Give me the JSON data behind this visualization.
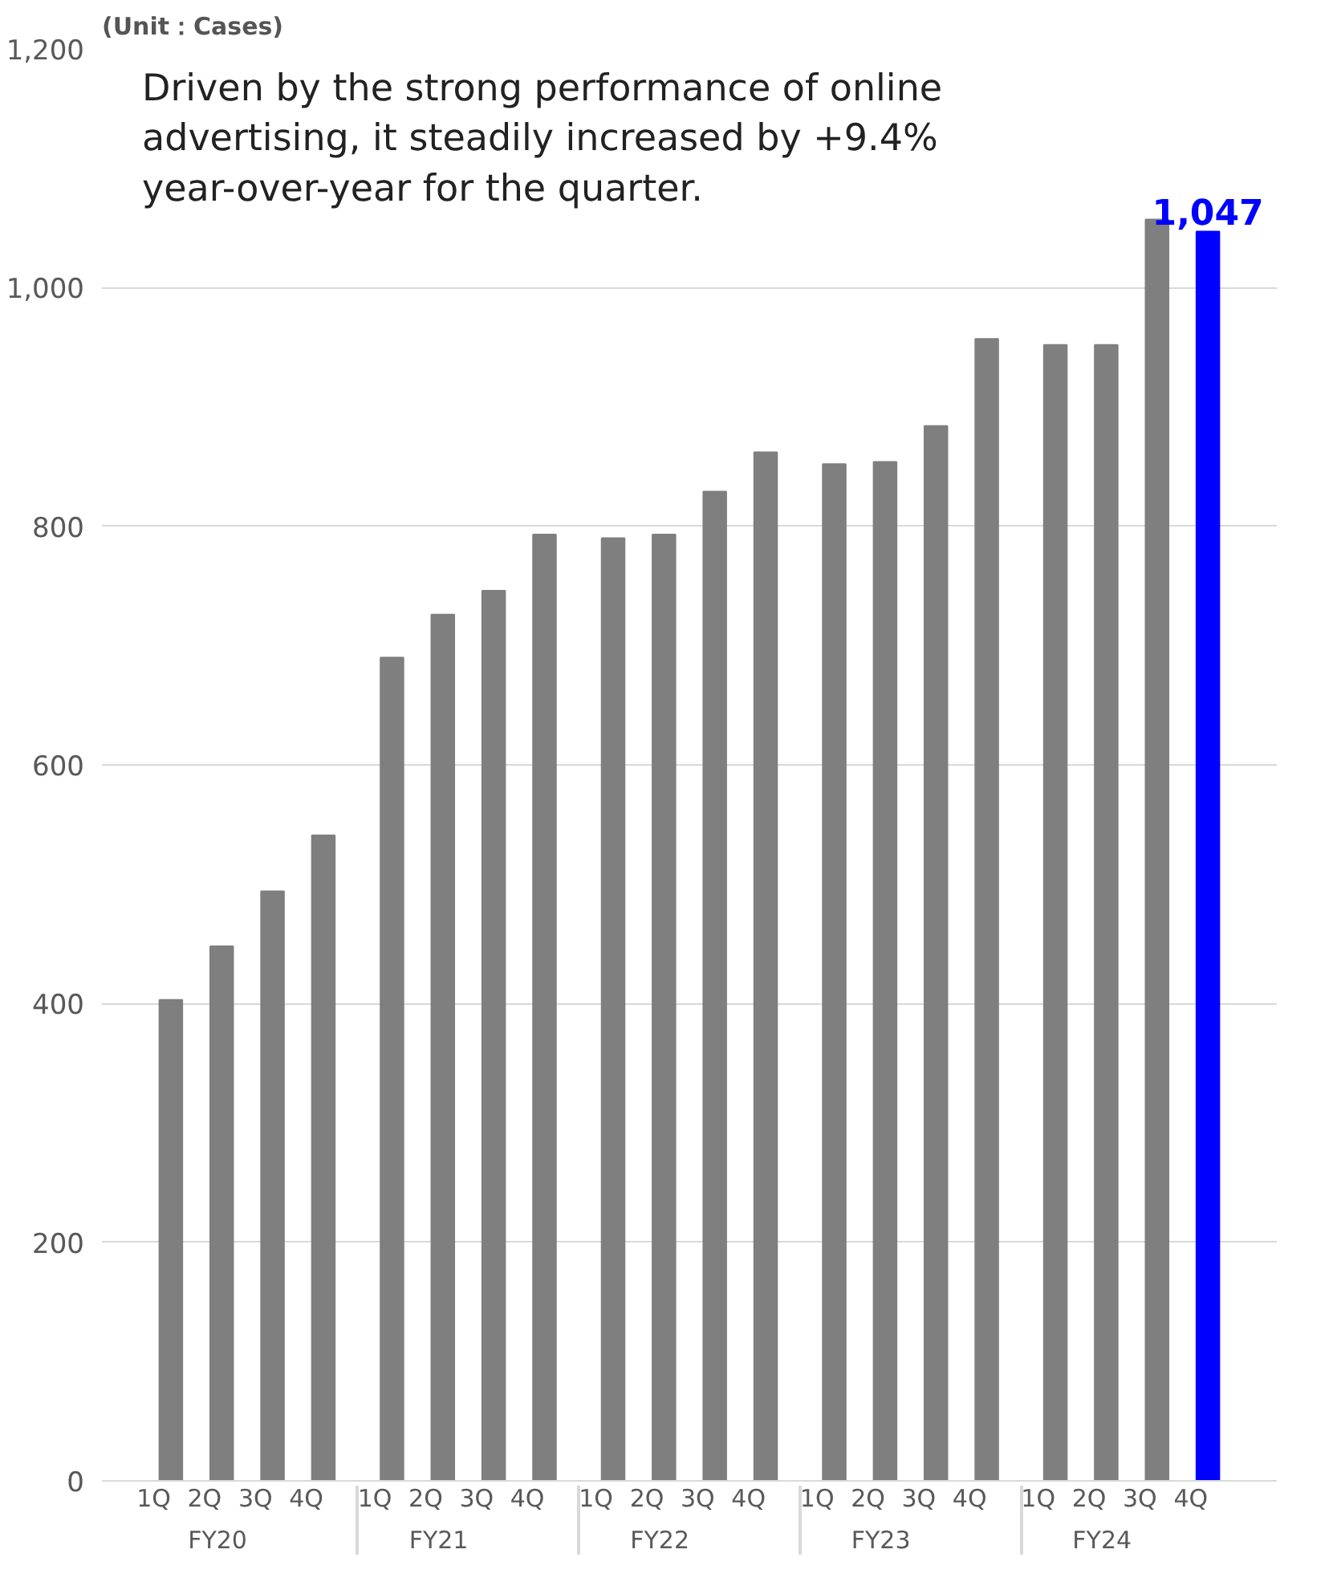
{
  "chart_data": {
    "type": "bar",
    "title": "(Unit：Cases)",
    "categories": [
      "1Q",
      "2Q",
      "3Q",
      "4Q",
      "1Q",
      "2Q",
      "3Q",
      "4Q",
      "1Q",
      "2Q",
      "3Q",
      "4Q",
      "1Q",
      "2Q",
      "3Q",
      "4Q",
      "1Q",
      "2Q",
      "3Q",
      "4Q"
    ],
    "values": [
      403,
      448,
      494,
      541,
      690,
      726,
      746,
      793,
      790,
      793,
      829,
      862,
      852,
      854,
      884,
      957,
      952,
      952,
      1057,
      1047
    ],
    "colors": [
      "#7f7f7f",
      "#7f7f7f",
      "#7f7f7f",
      "#7f7f7f",
      "#7f7f7f",
      "#7f7f7f",
      "#7f7f7f",
      "#7f7f7f",
      "#7f7f7f",
      "#7f7f7f",
      "#7f7f7f",
      "#7f7f7f",
      "#7f7f7f",
      "#7f7f7f",
      "#7f7f7f",
      "#7f7f7f",
      "#7f7f7f",
      "#7f7f7f",
      "#7f7f7f",
      "#0000ff"
    ],
    "value_labels": [
      null,
      null,
      null,
      null,
      null,
      null,
      null,
      null,
      null,
      null,
      null,
      null,
      null,
      null,
      null,
      null,
      null,
      null,
      null,
      "1,047"
    ],
    "ylim": [
      0,
      1200
    ],
    "yticks": [
      {
        "value": 0,
        "label": "0"
      },
      {
        "value": 200,
        "label": "200"
      },
      {
        "value": 400,
        "label": "400"
      },
      {
        "value": 600,
        "label": "600"
      },
      {
        "value": 800,
        "label": "800"
      },
      {
        "value": 1000,
        "label": "1,000"
      },
      {
        "value": 1200,
        "label": "1,200"
      }
    ],
    "grid": "y",
    "annotations": [
      "Driven by the strong performance of online advertising, it steadily increased by +9.4% year-over-year for the quarter.",
      "FY20",
      "FY21",
      "FY22",
      "FY23",
      "FY24"
    ]
  }
}
